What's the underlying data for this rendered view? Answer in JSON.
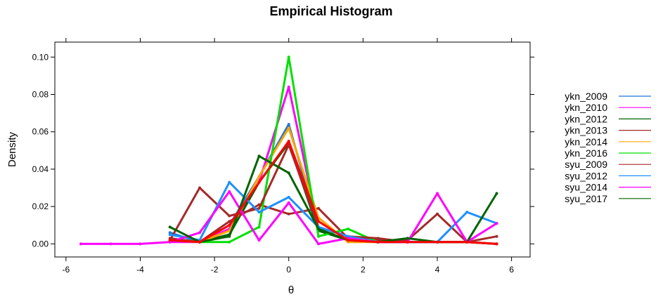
{
  "chart_data": {
    "type": "line",
    "title": "Empirical Histogram",
    "xlabel": "θ",
    "ylabel": "Density",
    "xlim": [
      -6.3,
      6.5
    ],
    "ylim": [
      -0.007,
      0.108
    ],
    "xticks": [
      -6,
      -4,
      -2,
      0,
      2,
      4,
      6
    ],
    "yticks": [
      0.0,
      0.02,
      0.04,
      0.06,
      0.08,
      0.1
    ],
    "ytick_labels": [
      "0.00",
      "0.02",
      "0.04",
      "0.06",
      "0.08",
      "0.10"
    ],
    "grid": false,
    "legend_position": "right",
    "series": [
      {
        "name": "ykn_2009",
        "color": "#1f77d6",
        "x": [
          -3.2,
          -2.4,
          -1.6,
          -0.8,
          0.0,
          0.8,
          1.6,
          2.4,
          3.2,
          4.0,
          4.8,
          5.6
        ],
        "y": [
          0.006,
          0.001,
          0.01,
          0.036,
          0.064,
          0.008,
          0.002,
          0.001,
          0.001,
          0.001,
          0.001,
          0.0
        ]
      },
      {
        "name": "ykn_2010",
        "color": "#ff00ff",
        "x": [
          -5.6,
          -4.8,
          -4.0,
          -3.2,
          -2.4,
          -1.6,
          -0.8,
          0.0,
          0.8,
          1.6,
          2.4,
          3.2,
          4.0,
          4.8,
          5.6
        ],
        "y": [
          0.0,
          0.0,
          0.0,
          0.001,
          0.001,
          0.008,
          0.033,
          0.084,
          0.008,
          0.002,
          0.001,
          0.001,
          0.001,
          0.001,
          0.0
        ]
      },
      {
        "name": "ykn_2012",
        "color": "#006400",
        "x": [
          -3.2,
          -2.4,
          -1.6,
          -0.8,
          0.0,
          0.8,
          1.6,
          2.4,
          3.2,
          4.0,
          4.8,
          5.6
        ],
        "y": [
          0.002,
          0.001,
          0.005,
          0.033,
          0.054,
          0.007,
          0.002,
          0.001,
          0.001,
          0.001,
          0.001,
          0.0
        ]
      },
      {
        "name": "ykn_2013",
        "color": "#a52a2a",
        "x": [
          -3.2,
          -2.4,
          -1.6,
          -0.8,
          0.0,
          0.8,
          1.6,
          2.4,
          3.2,
          4.0,
          4.8,
          5.6
        ],
        "y": [
          0.003,
          0.001,
          0.012,
          0.021,
          0.016,
          0.019,
          0.003,
          0.002,
          0.002,
          0.016,
          0.001,
          0.004
        ]
      },
      {
        "name": "ykn_2014",
        "color": "#ffa500",
        "x": [
          -3.2,
          -2.4,
          -1.6,
          -0.8,
          0.0,
          0.8,
          1.6,
          2.4,
          3.2,
          4.0,
          4.8,
          5.6
        ],
        "y": [
          0.002,
          0.001,
          0.007,
          0.036,
          0.062,
          0.014,
          0.001,
          0.001,
          0.001,
          0.001,
          0.001,
          0.0
        ]
      },
      {
        "name": "ykn_2016",
        "color": "#00e000",
        "x": [
          -3.2,
          -2.4,
          -1.6,
          -0.8,
          0.0,
          0.8,
          1.6,
          2.4,
          3.2,
          4.0,
          4.8,
          5.6
        ],
        "y": [
          0.002,
          0.001,
          0.001,
          0.009,
          0.1,
          0.004,
          0.008,
          0.001,
          0.001,
          0.001,
          0.001,
          0.0
        ]
      },
      {
        "name": "syu_2009",
        "color": "#a52a2a",
        "x": [
          -3.2,
          -2.4,
          -1.6,
          -0.8,
          0.0,
          0.8,
          1.6,
          2.4,
          3.2,
          4.0,
          4.8,
          5.6
        ],
        "y": [
          0.002,
          0.03,
          0.015,
          0.019,
          0.053,
          0.009,
          0.004,
          0.003,
          0.001,
          0.001,
          0.001,
          0.0
        ]
      },
      {
        "name": "syu_2012",
        "color": "#1e90ff",
        "x": [
          -3.2,
          -2.4,
          -1.6,
          -0.8,
          0.0,
          0.8,
          1.6,
          2.4,
          3.2,
          4.0,
          4.8,
          5.6
        ],
        "y": [
          0.005,
          0.002,
          0.033,
          0.017,
          0.025,
          0.009,
          0.004,
          0.001,
          0.001,
          0.001,
          0.017,
          0.011
        ]
      },
      {
        "name": "syu_2014",
        "color": "#ff00ff",
        "x": [
          -3.2,
          -2.4,
          -1.6,
          -0.8,
          0.0,
          0.8,
          1.6,
          2.4,
          3.2,
          4.0,
          4.8,
          5.6
        ],
        "y": [
          0.001,
          0.006,
          0.028,
          0.002,
          0.022,
          0.0,
          0.003,
          0.001,
          0.001,
          0.027,
          0.001,
          0.011
        ]
      },
      {
        "name": "syu_2017",
        "color": "#006400",
        "x": [
          -3.2,
          -2.4,
          -1.6,
          -0.8,
          0.0,
          0.8,
          1.6,
          2.4,
          3.2,
          4.0,
          4.8,
          5.6
        ],
        "y": [
          0.009,
          0.001,
          0.004,
          0.047,
          0.038,
          0.008,
          0.002,
          0.001,
          0.003,
          0.001,
          0.001,
          0.027
        ]
      },
      {
        "name": "",
        "color": "#ff0000",
        "x": [
          -3.2,
          -2.4,
          -1.6,
          -0.8,
          0.0,
          0.8,
          1.6,
          2.4,
          3.2,
          4.0,
          4.8,
          5.6
        ],
        "y": [
          0.002,
          0.001,
          0.01,
          0.033,
          0.055,
          0.012,
          0.002,
          0.001,
          0.001,
          0.001,
          0.001,
          0.0
        ]
      }
    ]
  }
}
